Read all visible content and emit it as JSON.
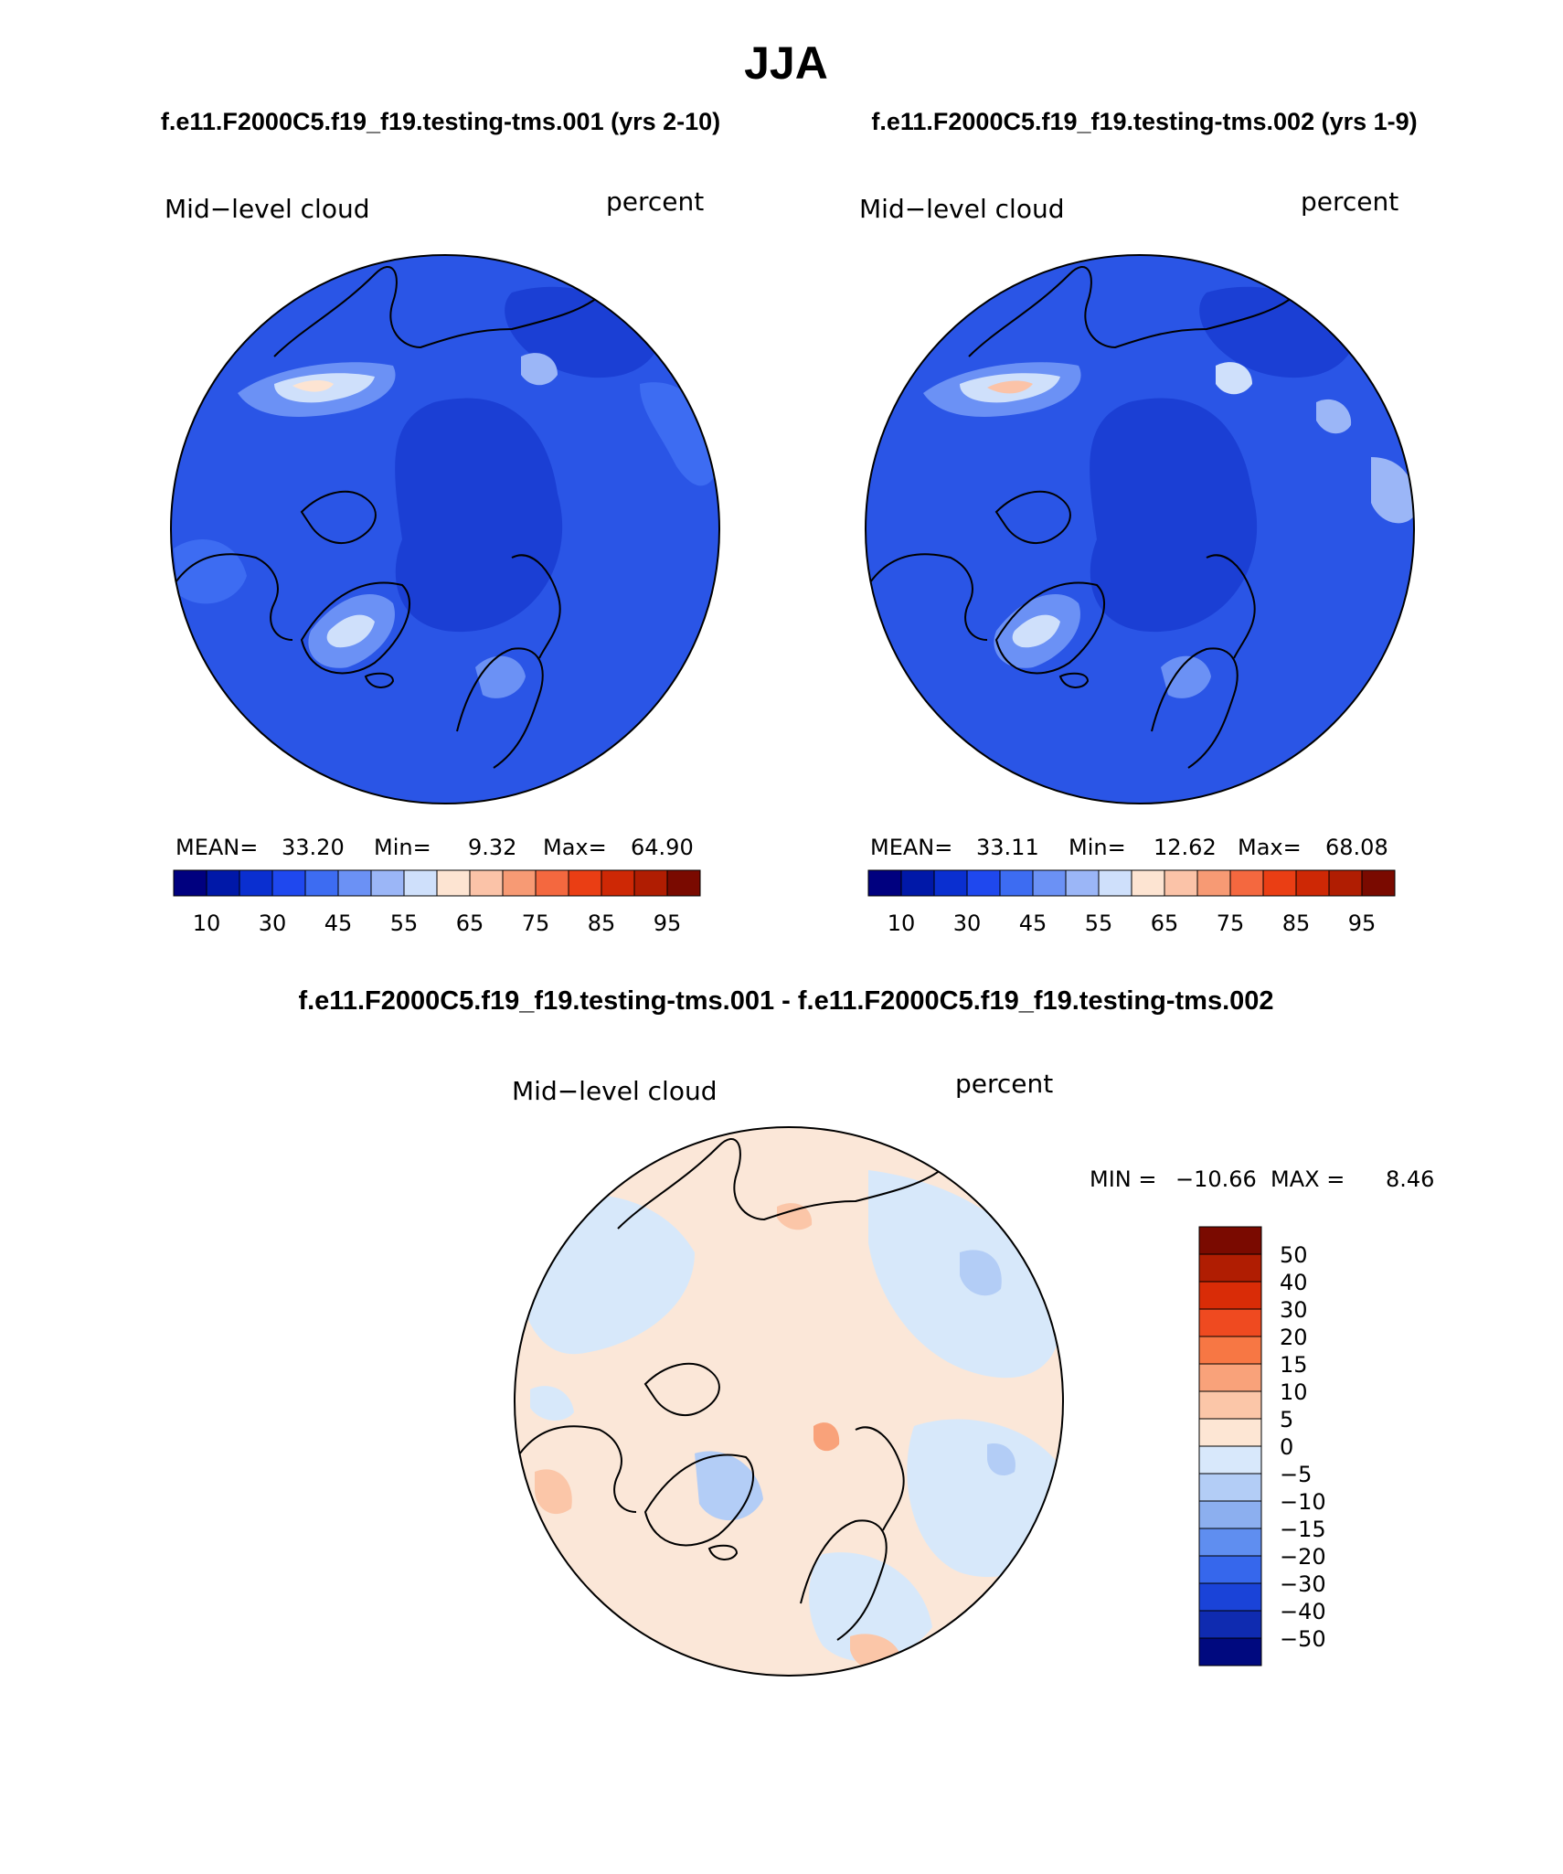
{
  "title": "JJA",
  "panels": [
    {
      "case": "f.e11.F2000C5.f19_f19.testing-tms.001 (yrs 2-10)",
      "variable": "Mid−level cloud",
      "units": "percent",
      "mean_label": "MEAN=",
      "mean": "33.20",
      "min_label": "Min=",
      "min": "9.32",
      "max_label": "Max=",
      "max": "64.90"
    },
    {
      "case": "f.e11.F2000C5.f19_f19.testing-tms.002 (yrs 1-9)",
      "variable": "Mid−level cloud",
      "units": "percent",
      "mean_label": "MEAN=",
      "mean": "33.11",
      "min_label": "Min=",
      "min": "12.62",
      "max_label": "Max=",
      "max": "68.08"
    }
  ],
  "colorbar": {
    "colors": [
      "#00007f",
      "#0018a8",
      "#0a2fd0",
      "#1f48ee",
      "#3d6cf2",
      "#6b91f5",
      "#9bb6f7",
      "#cfe0fb",
      "#fde4d2",
      "#fbc3a8",
      "#f79a74",
      "#f4683f",
      "#ea3e14",
      "#ce2805",
      "#b01d02",
      "#7a0a00"
    ],
    "labels": [
      "10",
      "30",
      "45",
      "55",
      "65",
      "75",
      "85",
      "95"
    ]
  },
  "difference": {
    "title": "f.e11.F2000C5.f19_f19.testing-tms.001 - f.e11.F2000C5.f19_f19.testing-tms.002",
    "variable": "Mid−level cloud",
    "units": "percent",
    "min_label": "MIN =",
    "min": "−10.66",
    "max_label": "MAX =",
    "max": "8.46",
    "colorbar_colors": [
      "#7a0a00",
      "#b01d02",
      "#d92c07",
      "#ef4a20",
      "#f77744",
      "#f9a27a",
      "#fbc6a8",
      "#fde6d4",
      "#d8e8fb",
      "#b3cdf6",
      "#8cafef",
      "#5f8ef0",
      "#3667ec",
      "#1a43d8",
      "#0f2bb0",
      "#00097f"
    ],
    "colorbar_labels": [
      "50",
      "40",
      "30",
      "20",
      "15",
      "10",
      "5",
      "0",
      "−5",
      "−10",
      "−15",
      "−20",
      "−30",
      "−40",
      "−50"
    ]
  },
  "colors": {
    "panel_base": "#2a55e6",
    "panel_dark": "#1b3fd4",
    "diff_base": "#fbe7d8",
    "diff_neg": "#d7e8fa",
    "coast": "#000000"
  }
}
